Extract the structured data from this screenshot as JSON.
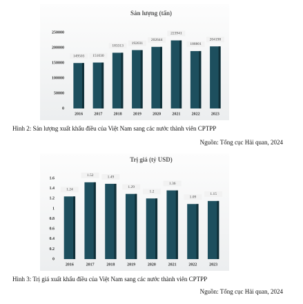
{
  "chart_data": [
    {
      "type": "bar",
      "title": "Sản lượng (tấn)",
      "categories": [
        "2016",
        "2017",
        "2018",
        "2019",
        "2020",
        "2021",
        "2022",
        "2023"
      ],
      "values": [
        149503,
        151030,
        183313,
        192031,
        202644,
        223941,
        188801,
        204198
      ],
      "color": "#1d4f5e",
      "ylim": [
        0,
        250000
      ],
      "yticks": [
        0,
        50000,
        100000,
        150000,
        200000,
        250000
      ],
      "caption": "Hình 2: Sản lượng xuất khẩu điều của Việt Nam sang các nước thành viên CPTPP",
      "source": "Nguồn: Tổng cục Hải quan, 2024"
    },
    {
      "type": "bar",
      "title": "Trị giá (tỷ USD)",
      "categories": [
        "2016",
        "2017",
        "2018",
        "2019",
        "2020",
        "2021",
        "2022",
        "2023"
      ],
      "values": [
        1.24,
        1.52,
        1.49,
        1.29,
        1.2,
        1.36,
        1.09,
        1.15
      ],
      "color": "#1d4f5e",
      "ylim": [
        0,
        1.6
      ],
      "yticks": [
        0,
        0.2,
        0.4,
        0.6,
        0.8,
        1,
        1.2,
        1.4,
        1.6
      ],
      "caption": "Hình 3: Trị giá xuất khẩu điều của Việt Nam sang các nước thành viên CPTPP",
      "source": "Nguồn: Tổng cục Hải quan, 2024"
    }
  ]
}
